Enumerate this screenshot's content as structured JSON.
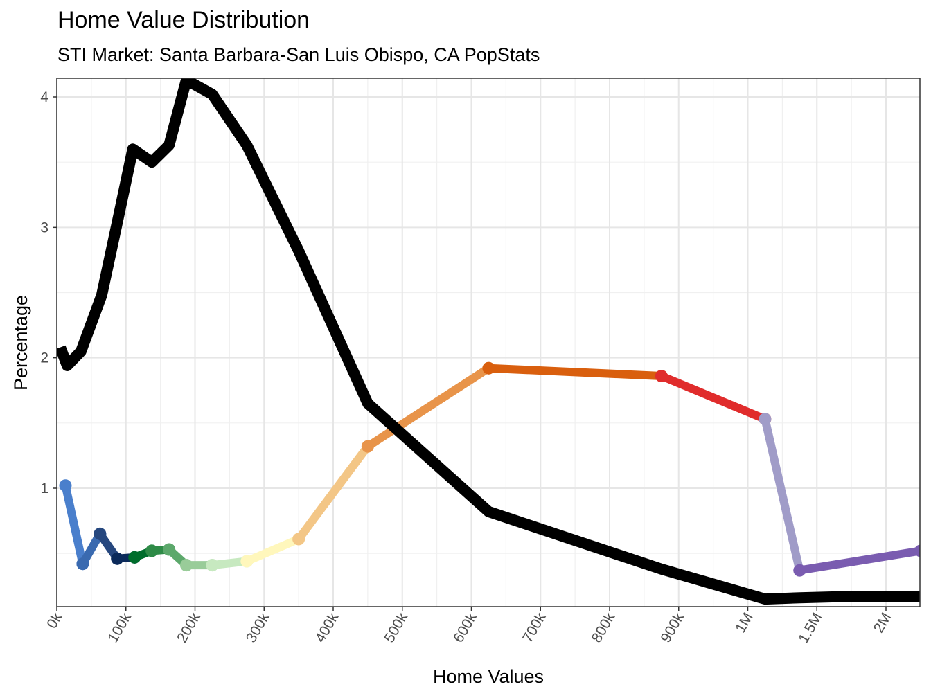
{
  "chart_data": {
    "type": "line",
    "title": "Home Value Distribution",
    "subtitle": "STI Market: Santa Barbara-San Luis Obispo, CA PopStats",
    "xlabel": "Home Values",
    "ylabel": "Percentage",
    "x_tick_labels": [
      "0k",
      "100k",
      "200k",
      "300k",
      "400k",
      "500k",
      "600k",
      "700k",
      "800k",
      "900k",
      "1M",
      "1.5M",
      "2M"
    ],
    "x_tick_values": [
      0,
      100000,
      200000,
      300000,
      400000,
      500000,
      600000,
      700000,
      800000,
      900000,
      1000000,
      1500000,
      2000000
    ],
    "y_tick_labels": [
      "1",
      "2",
      "3",
      "4"
    ],
    "y_tick_values": [
      1,
      2,
      3,
      4
    ],
    "ylim": [
      0.15,
      4.13
    ],
    "grid": true,
    "series": [
      {
        "color": "#000000",
        "x": [
          5000,
          15000,
          35000,
          65000,
          90000,
          110000,
          137500,
          162500,
          187500,
          225000,
          275000,
          350000,
          450000,
          625000,
          875000,
          1125000,
          1375000,
          1750000,
          2250000
        ],
        "y": [
          2.08,
          1.94,
          2.05,
          2.48,
          3.1,
          3.6,
          3.5,
          3.63,
          4.13,
          4.02,
          3.63,
          2.82,
          1.65,
          0.82,
          0.38,
          0.15,
          0.16,
          0.17,
          0.17
        ]
      }
    ],
    "colored_segments": [
      {
        "color": "#4a7fcc",
        "x": [
          12500,
          37500
        ],
        "y": [
          1.02,
          0.42
        ]
      },
      {
        "color": "#3a6ab0",
        "x": [
          37500,
          62500
        ],
        "y": [
          0.42,
          0.65
        ]
      },
      {
        "color": "#26477e",
        "x": [
          62500,
          87500
        ],
        "y": [
          0.65,
          0.46
        ]
      },
      {
        "color": "#0b2a5a",
        "x": [
          87500,
          112500
        ],
        "y": [
          0.46,
          0.47
        ]
      },
      {
        "color": "#006d2c",
        "x": [
          112500,
          137500
        ],
        "y": [
          0.47,
          0.52
        ]
      },
      {
        "color": "#2e8b47",
        "x": [
          137500,
          162500
        ],
        "y": [
          0.52,
          0.53
        ]
      },
      {
        "color": "#5ca86b",
        "x": [
          162500,
          187500
        ],
        "y": [
          0.53,
          0.41
        ]
      },
      {
        "color": "#99cc99",
        "x": [
          187500,
          225000
        ],
        "y": [
          0.41,
          0.41
        ]
      },
      {
        "color": "#c7e9c0",
        "x": [
          225000,
          275000
        ],
        "y": [
          0.41,
          0.44
        ]
      },
      {
        "color": "#fff7bc",
        "x": [
          275000,
          350000
        ],
        "y": [
          0.44,
          0.61
        ]
      },
      {
        "color": "#f3c686",
        "x": [
          350000,
          450000
        ],
        "y": [
          0.61,
          1.32
        ]
      },
      {
        "color": "#e8944a",
        "x": [
          450000,
          625000
        ],
        "y": [
          1.32,
          1.92
        ]
      },
      {
        "color": "#d95f0e",
        "x": [
          625000,
          875000
        ],
        "y": [
          1.92,
          1.86
        ]
      },
      {
        "color": "#e02c2c",
        "x": [
          875000,
          1125000
        ],
        "y": [
          1.86,
          1.53
        ]
      },
      {
        "color": "#a09cc8",
        "x": [
          1125000,
          1375000
        ],
        "y": [
          1.53,
          0.37
        ]
      },
      {
        "color": "#7a5cb0",
        "x": [
          1375000,
          2250000
        ],
        "y": [
          0.37,
          0.52
        ]
      }
    ]
  }
}
